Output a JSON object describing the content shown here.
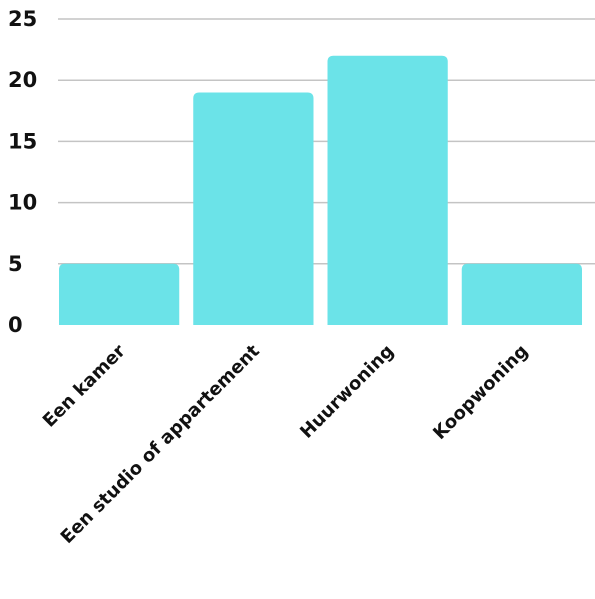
{
  "chart_data": {
    "type": "bar",
    "categories": [
      "Een kamer",
      "Een studio of appartement",
      "Huurwoning",
      "Koopwoning"
    ],
    "values": [
      5,
      19,
      22,
      5
    ],
    "title": "",
    "xlabel": "",
    "ylabel": "",
    "ylim": [
      0,
      25
    ],
    "yticks": [
      0,
      5,
      10,
      15,
      20,
      25
    ],
    "grid": true,
    "legend": "none",
    "bar_color": "#6be3e8"
  }
}
